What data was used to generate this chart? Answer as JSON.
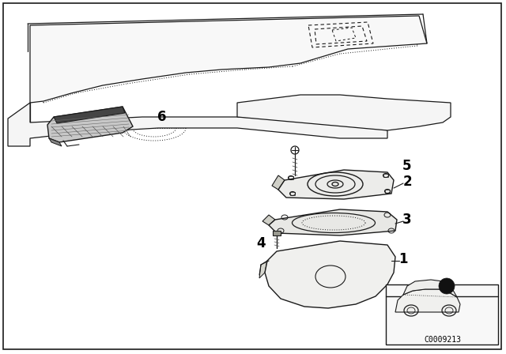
{
  "bg": "#ffffff",
  "border": "#000000",
  "lc": "#1a1a1a",
  "lc_dot": "#333333",
  "fig_w": 6.4,
  "fig_h": 4.48,
  "dpi": 100,
  "diagram_code": "C0009213"
}
